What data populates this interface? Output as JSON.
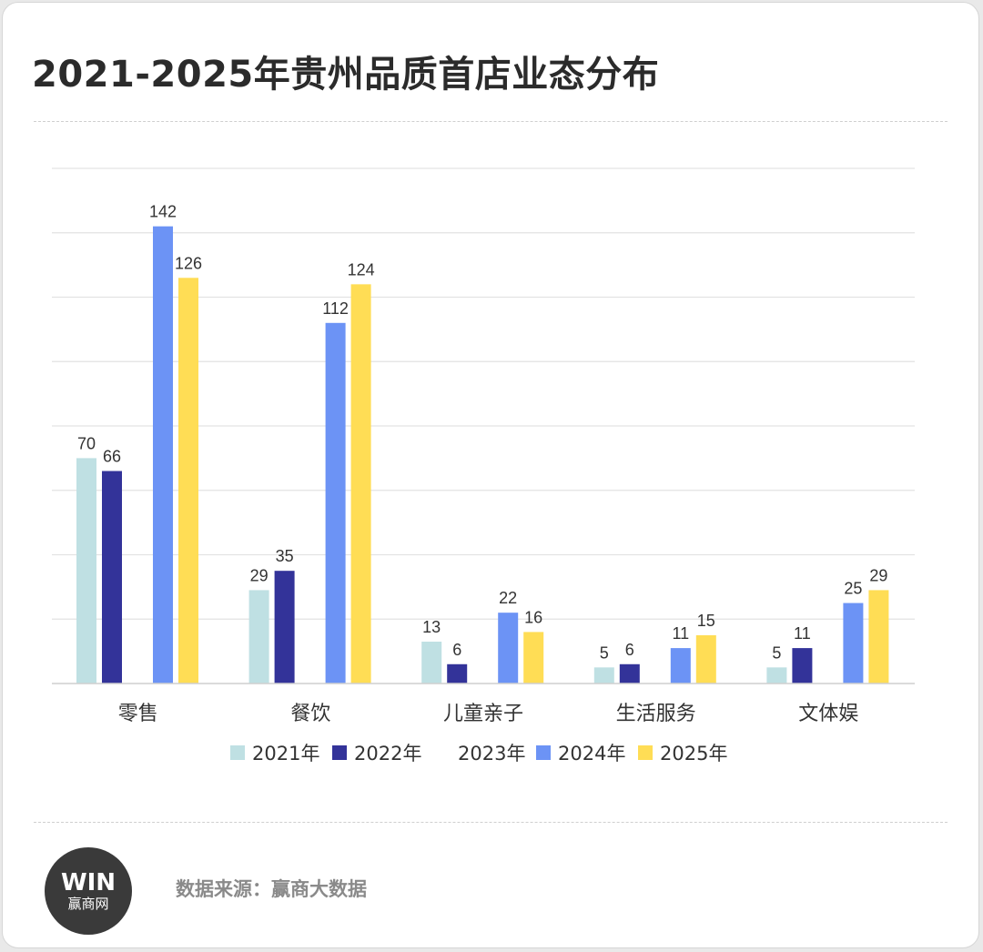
{
  "title": "2021-2025年贵州品质首店业态分布",
  "source_text": "数据来源：赢商大数据",
  "logo": {
    "mark": "WIN",
    "name": "赢商网"
  },
  "colors": {
    "2021年": "#bfe0e3",
    "2022年": "#333399",
    "2023年": "#ffffff",
    "2024年": "#6c93f5",
    "2025年": "#ffdd55"
  },
  "chart_data": {
    "type": "bar",
    "title": "2021-2025年贵州品质首店业态分布",
    "categories": [
      "零售",
      "餐饮",
      "儿童亲子",
      "生活服务",
      "文体娱"
    ],
    "series": [
      {
        "name": "2021年",
        "values": [
          70,
          29,
          13,
          5,
          5
        ]
      },
      {
        "name": "2022年",
        "values": [
          66,
          35,
          6,
          6,
          11
        ]
      },
      {
        "name": "2023年",
        "values": [
          null,
          null,
          null,
          null,
          null
        ]
      },
      {
        "name": "2024年",
        "values": [
          142,
          112,
          22,
          11,
          25
        ]
      },
      {
        "name": "2025年",
        "values": [
          126,
          124,
          16,
          15,
          29
        ]
      }
    ],
    "xlabel": "",
    "ylabel": "",
    "ylim": [
      0,
      160
    ],
    "grid": true,
    "legend": "bottom"
  }
}
